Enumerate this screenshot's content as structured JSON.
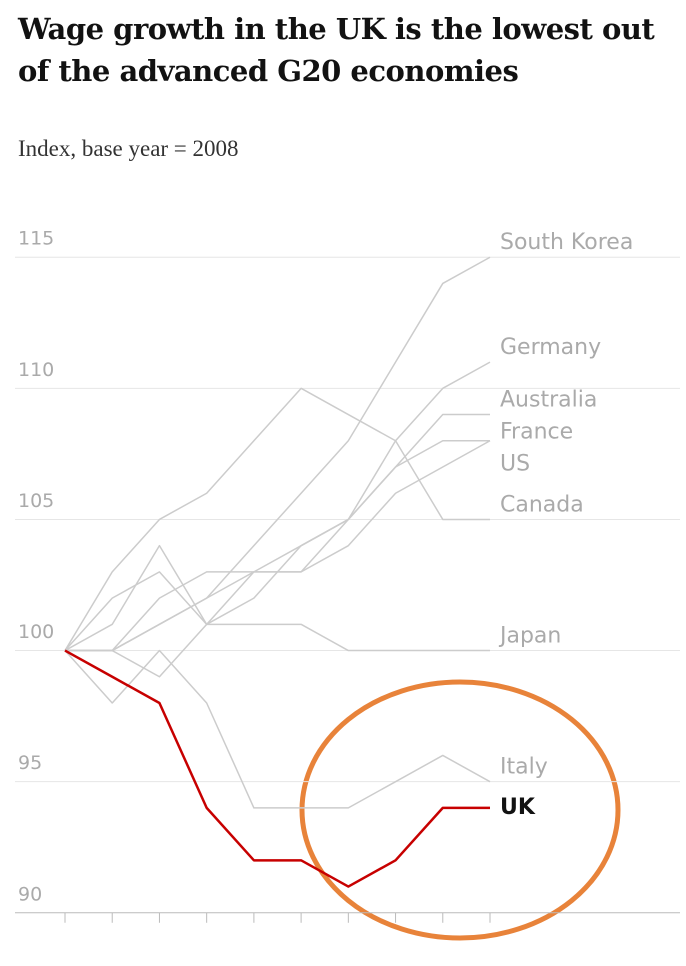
{
  "chart_data": {
    "type": "line",
    "title": "Wage growth in the UK is the lowest out of the advanced G20 economies",
    "subtitle": "Index, base year = 2008",
    "categories": [
      null,
      null,
      null,
      null,
      null,
      null,
      null,
      null,
      null,
      null
    ],
    "ylim": [
      89,
      116
    ],
    "yticks": [
      90,
      95,
      100,
      105,
      110,
      115
    ],
    "grid": true,
    "series": [
      {
        "name": "South Korea",
        "color": "#cccccc",
        "values": [
          100,
          100,
          101,
          102,
          104,
          106,
          108,
          111,
          114,
          115
        ]
      },
      {
        "name": "Germany",
        "color": "#cccccc",
        "values": [
          100,
          100,
          99,
          101,
          102,
          104,
          105,
          108,
          110,
          111
        ]
      },
      {
        "name": "Australia",
        "color": "#cccccc",
        "values": [
          100,
          101,
          104,
          101,
          103,
          103,
          105,
          107,
          109,
          109
        ]
      },
      {
        "name": "France",
        "color": "#cccccc",
        "values": [
          100,
          100,
          102,
          103,
          103,
          104,
          105,
          107,
          108,
          108
        ]
      },
      {
        "name": "US",
        "color": "#cccccc",
        "values": [
          100,
          100,
          101,
          102,
          103,
          103,
          104,
          106,
          107,
          108
        ]
      },
      {
        "name": "Canada",
        "color": "#cccccc",
        "values": [
          100,
          103,
          105,
          106,
          108,
          110,
          109,
          108,
          105,
          105
        ]
      },
      {
        "name": "Japan",
        "color": "#cccccc",
        "values": [
          100,
          102,
          103,
          101,
          101,
          101,
          100,
          100,
          100,
          100
        ]
      },
      {
        "name": "Italy",
        "color": "#cccccc",
        "values": [
          100,
          98,
          100,
          98,
          94,
          94,
          94,
          95,
          96,
          95
        ]
      },
      {
        "name": "UK",
        "color": "#c70000",
        "values": [
          100,
          99,
          98,
          94,
          92,
          92,
          91,
          92,
          94,
          94
        ]
      }
    ]
  }
}
